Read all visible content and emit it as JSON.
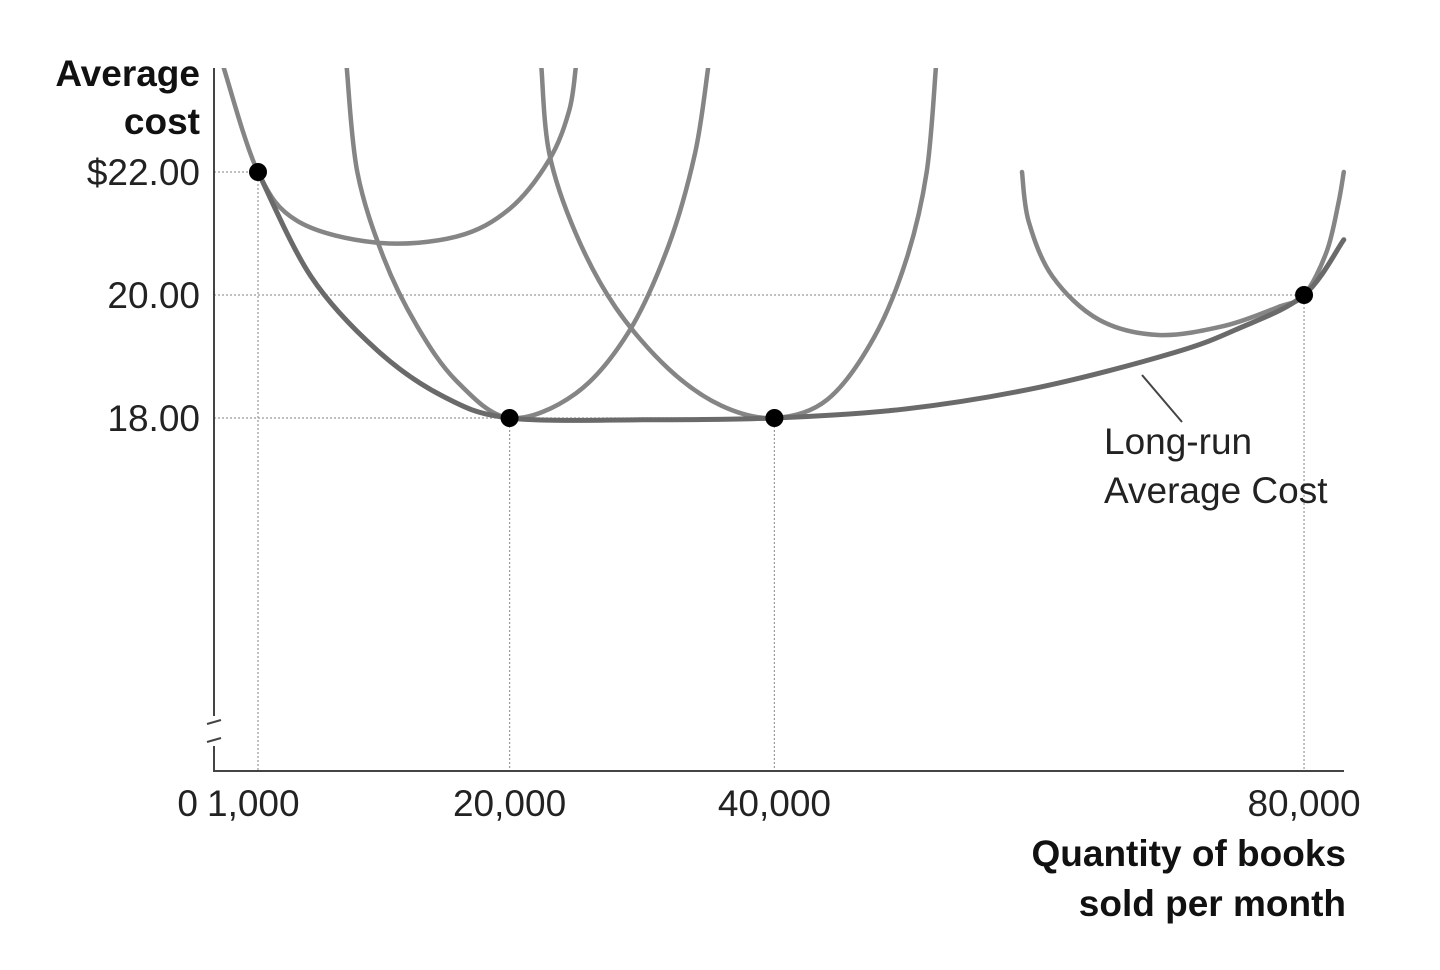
{
  "chart_data": {
    "type": "line",
    "ylabel_lines": [
      "Average",
      "cost"
    ],
    "xlabel_lines": [
      "Quantity of books",
      "sold per month"
    ],
    "x_tick_labels": [
      "0",
      "1,000",
      "20,000",
      "40,000",
      "80,000"
    ],
    "y_tick_labels": [
      "$22.00",
      "20.00",
      "18.00"
    ],
    "x_ticks": [
      0,
      1000,
      20000,
      40000,
      80000
    ],
    "y_ticks": [
      22,
      20,
      18
    ],
    "xlim": [
      0,
      83000
    ],
    "ylim": [
      12.2,
      23.7
    ],
    "axis_break": true,
    "gridlines": "dotted at labeled points",
    "annotation_lines": [
      "Long-run",
      "Average Cost"
    ],
    "highlighted_points": [
      {
        "x": 1000,
        "y": 22
      },
      {
        "x": 20000,
        "y": 18
      },
      {
        "x": 40000,
        "y": 18
      },
      {
        "x": 80000,
        "y": 20
      }
    ],
    "long_run_average_cost": [
      {
        "x": 1000,
        "y": 22.0
      },
      {
        "x": 5000,
        "y": 20.3
      },
      {
        "x": 10000,
        "y": 19.1
      },
      {
        "x": 15000,
        "y": 18.35
      },
      {
        "x": 20000,
        "y": 18.0
      },
      {
        "x": 30000,
        "y": 17.97
      },
      {
        "x": 40000,
        "y": 18.0
      },
      {
        "x": 50000,
        "y": 18.15
      },
      {
        "x": 60000,
        "y": 18.5
      },
      {
        "x": 70000,
        "y": 19.05
      },
      {
        "x": 75000,
        "y": 19.45
      },
      {
        "x": 80000,
        "y": 20.0
      },
      {
        "x": 83000,
        "y": 20.9
      }
    ],
    "short_run_curves": [
      {
        "points": [
          {
            "x": -1600,
            "y": 23.7
          },
          {
            "x": 1000,
            "y": 22.0
          },
          {
            "x": 4000,
            "y": 21.2
          },
          {
            "x": 10000,
            "y": 20.85
          },
          {
            "x": 16000,
            "y": 20.95
          },
          {
            "x": 20000,
            "y": 21.4
          },
          {
            "x": 23000,
            "y": 22.2
          },
          {
            "x": 24500,
            "y": 23.0
          },
          {
            "x": 25000,
            "y": 23.7
          }
        ]
      },
      {
        "points": [
          {
            "x": 7700,
            "y": 23.7
          },
          {
            "x": 8500,
            "y": 22.0
          },
          {
            "x": 10500,
            "y": 20.6
          },
          {
            "x": 13000,
            "y": 19.5
          },
          {
            "x": 16000,
            "y": 18.6
          },
          {
            "x": 20000,
            "y": 18.0
          },
          {
            "x": 25000,
            "y": 18.4
          },
          {
            "x": 29000,
            "y": 19.4
          },
          {
            "x": 32000,
            "y": 20.8
          },
          {
            "x": 34000,
            "y": 22.3
          },
          {
            "x": 35000,
            "y": 23.7
          }
        ]
      },
      {
        "points": [
          {
            "x": 22400,
            "y": 23.7
          },
          {
            "x": 23000,
            "y": 22.3
          },
          {
            "x": 25000,
            "y": 21.0
          },
          {
            "x": 28000,
            "y": 19.8
          },
          {
            "x": 32000,
            "y": 18.8
          },
          {
            "x": 36000,
            "y": 18.2
          },
          {
            "x": 40000,
            "y": 18.0
          },
          {
            "x": 44000,
            "y": 18.3
          },
          {
            "x": 47500,
            "y": 19.3
          },
          {
            "x": 50000,
            "y": 20.6
          },
          {
            "x": 51500,
            "y": 22.0
          },
          {
            "x": 52200,
            "y": 23.7
          }
        ]
      },
      {
        "points": [
          {
            "x": 58700,
            "y": 22.0
          },
          {
            "x": 59200,
            "y": 21.2
          },
          {
            "x": 61000,
            "y": 20.3
          },
          {
            "x": 64500,
            "y": 19.6
          },
          {
            "x": 69000,
            "y": 19.35
          },
          {
            "x": 74000,
            "y": 19.5
          },
          {
            "x": 78000,
            "y": 19.8
          },
          {
            "x": 80000,
            "y": 20.0
          },
          {
            "x": 81700,
            "y": 20.7
          },
          {
            "x": 82600,
            "y": 21.5
          },
          {
            "x": 83000,
            "y": 22.0
          }
        ]
      }
    ]
  }
}
